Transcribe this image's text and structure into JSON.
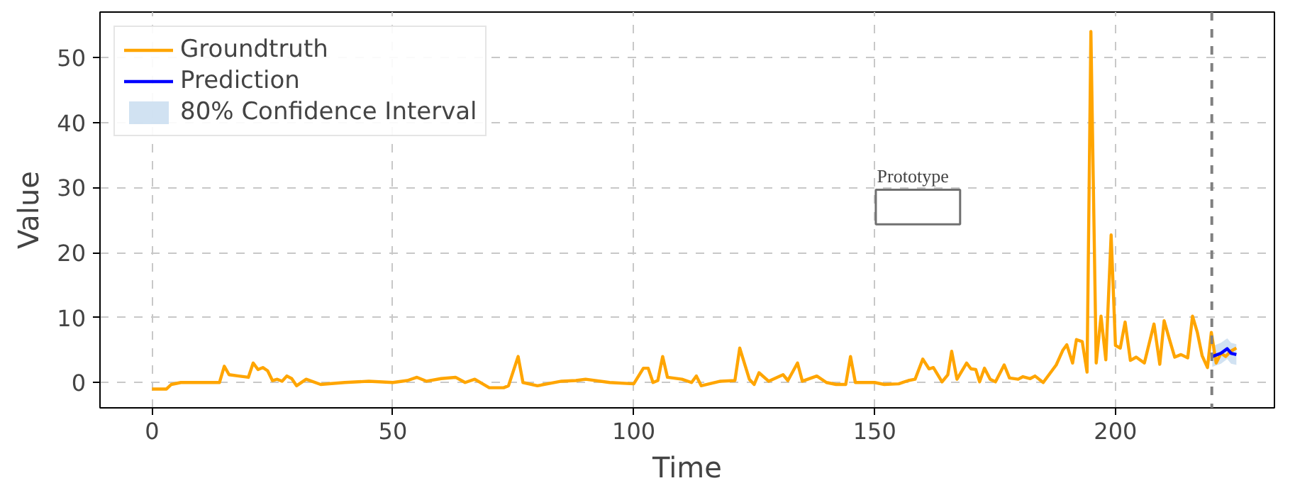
{
  "chart_data": {
    "type": "line",
    "xlabel": "Time",
    "ylabel": "Value",
    "xlim": [
      -10.8,
      233
    ],
    "ylim": [
      -3.9,
      57
    ],
    "xticks": [
      0,
      50,
      100,
      150,
      200
    ],
    "yticks": [
      0,
      10,
      20,
      30,
      40,
      50
    ],
    "grid": true,
    "legend": "top left",
    "line_style": "solid",
    "marker": "none",
    "annotations": [
      "Prototype"
    ],
    "ref_lines": [
      {
        "axis": "x",
        "value": 220,
        "color": "#808080",
        "line_style": "dashed"
      }
    ],
    "series": [
      {
        "name": "Groundtruth",
        "color": "#ffa500",
        "x": [
          0,
          3,
          4,
          6,
          10,
          14,
          15,
          16,
          18,
          20,
          21,
          22,
          23,
          24,
          25,
          26,
          27,
          28,
          29,
          30,
          32,
          35,
          40,
          45,
          50,
          53,
          55,
          57,
          60,
          63,
          65,
          67,
          70,
          73,
          74,
          76,
          77,
          80,
          85,
          88,
          90,
          95,
          100,
          102,
          103,
          104,
          105,
          106,
          107,
          110,
          112,
          113,
          114,
          118,
          121,
          122,
          124,
          125,
          126,
          128,
          131,
          132,
          134,
          135,
          138,
          140,
          142,
          144,
          145,
          146,
          150,
          152,
          155,
          157,
          158.4,
          160,
          161.3,
          162.2,
          164,
          165.2,
          166,
          167.1,
          169.1,
          170,
          171,
          171.8,
          172.8,
          174,
          175.1,
          176.9,
          178,
          179.8,
          180.8,
          182.3,
          183.3,
          185,
          186.2,
          187.7,
          189.1,
          189.9,
          191.1,
          191.9,
          193.1,
          194.1,
          194.9,
          196,
          197,
          198,
          199.1,
          200,
          201,
          202,
          203.1,
          204.3,
          206,
          208,
          209.2,
          210.1,
          211.3,
          212.3,
          213.6,
          215,
          216,
          217,
          218,
          219.1,
          219.9,
          220.9,
          221.9,
          222.9,
          223.9,
          225.1
        ],
        "values": [
          -1,
          -1,
          -0.3,
          0,
          0,
          0,
          2.5,
          1.2,
          1,
          0.8,
          3,
          2,
          2.3,
          1.8,
          0.3,
          0.5,
          0.2,
          1,
          0.6,
          -0.5,
          0.5,
          -0.3,
          0,
          0.2,
          0,
          0.3,
          0.8,
          0.2,
          0.6,
          0.8,
          0,
          0.5,
          -0.8,
          -0.8,
          -0.5,
          4,
          0,
          -0.5,
          0.2,
          0.3,
          0.5,
          0,
          -0.2,
          2.2,
          2.2,
          0,
          0.3,
          4,
          0.8,
          0.5,
          0,
          1,
          -0.5,
          0.2,
          0.3,
          5.3,
          0.5,
          -0.3,
          1.5,
          0.2,
          1.2,
          0.3,
          3,
          0.2,
          1,
          0,
          -0.3,
          -0.3,
          4,
          0,
          0,
          -0.3,
          -0.2,
          0.3,
          0.5,
          3.6,
          2.1,
          2.3,
          0.1,
          1.2,
          4.8,
          0.5,
          3,
          2.1,
          2,
          0.1,
          2.2,
          0.5,
          0.1,
          2.7,
          0.7,
          0.5,
          0.9,
          0.6,
          1,
          0,
          1.2,
          2.7,
          5,
          5.8,
          3,
          6.6,
          6.3,
          1.6,
          54,
          3,
          10.2,
          3.5,
          22.7,
          5.7,
          5.3,
          9.3,
          3.4,
          3.9,
          3,
          9,
          2.8,
          9.5,
          6.4,
          3.9,
          4.3,
          3.8,
          10.2,
          7.7,
          4.1,
          2.3,
          7.7,
          3,
          4.5,
          4,
          4.8,
          5.3
        ]
      },
      {
        "name": "Prediction",
        "color": "#0000ff",
        "x": [
          220.1,
          221.9,
          223.2,
          224,
          225.1
        ],
        "values": [
          4,
          4.5,
          5.2,
          4.5,
          4.3
        ],
        "lower": [
          2.4,
          2.9,
          3.6,
          2.9,
          2.7
        ],
        "upper": [
          5.6,
          6.1,
          6.8,
          6.1,
          5.9
        ]
      },
      {
        "name": "80% Confidence Interval",
        "type": "area",
        "color": "#c6dbef"
      }
    ]
  }
}
